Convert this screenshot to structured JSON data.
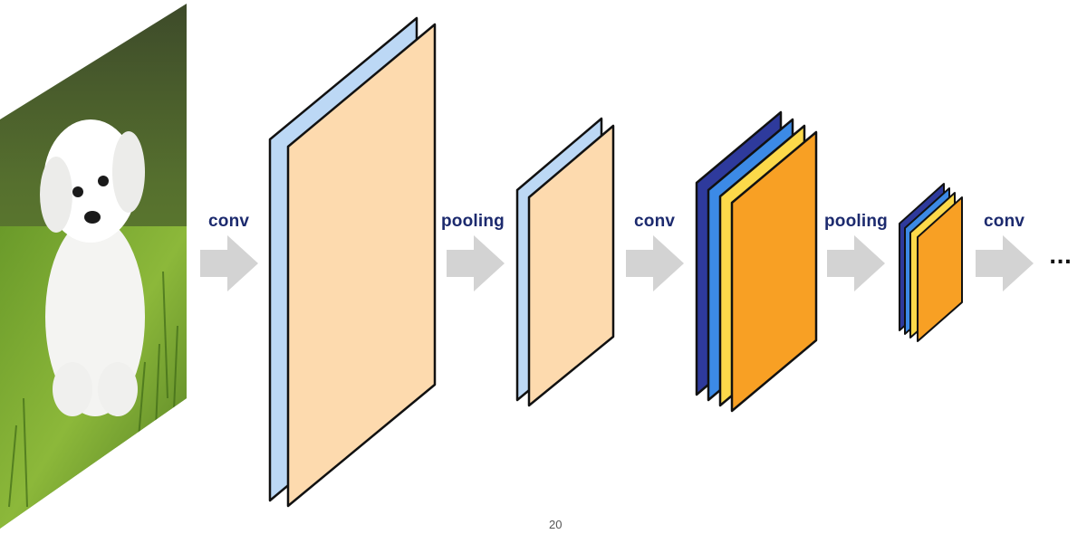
{
  "diagram": {
    "input_image": {
      "subject": "white dog in grass"
    },
    "operations": [
      {
        "id": "op1",
        "label": "conv"
      },
      {
        "id": "op2",
        "label": "pooling"
      },
      {
        "id": "op3",
        "label": "conv"
      },
      {
        "id": "op4",
        "label": "pooling"
      },
      {
        "id": "op5",
        "label": "conv"
      }
    ],
    "continuation": "...",
    "page_number": "20",
    "colors": {
      "label_text": "#1c2a6e",
      "arrow": "#d3d3d3",
      "outline": "#111111",
      "light_blue": "#bcd8f5",
      "peach": "#fddaae",
      "navy": "#2e3a9c",
      "blue": "#3c8ae6",
      "yellow": "#fcd94a",
      "orange": "#f8a024"
    }
  }
}
